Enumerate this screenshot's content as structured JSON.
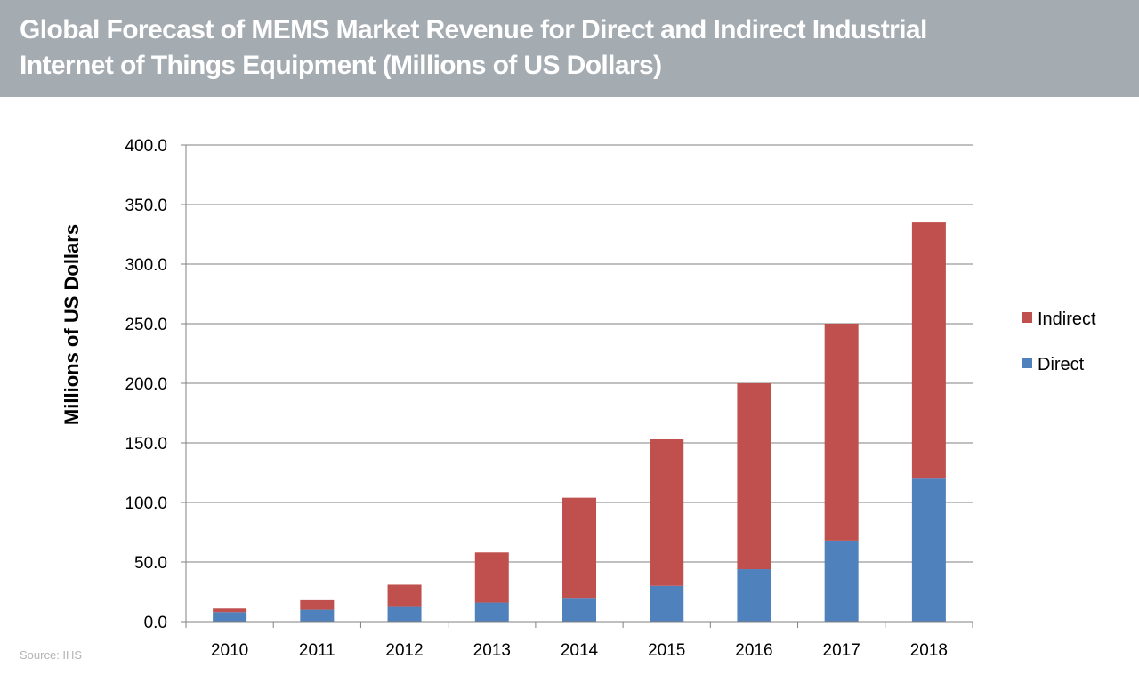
{
  "header": {
    "title_line1": "Global Forecast of MEMS Market Revenue for Direct and Indirect Industrial",
    "title_line2": "Internet of Things Equipment (Millions of US Dollars)"
  },
  "footer": {
    "source": "Source: IHS"
  },
  "colors": {
    "header_bg": "#a4acb2",
    "indirect": "#c0504d",
    "direct": "#4f81bd",
    "grid": "#808080"
  },
  "chart_data": {
    "type": "bar",
    "stacked": true,
    "categories": [
      "2010",
      "2011",
      "2012",
      "2013",
      "2014",
      "2015",
      "2016",
      "2017",
      "2018"
    ],
    "series": [
      {
        "name": "Direct",
        "color": "#4f81bd",
        "values": [
          8,
          10,
          13,
          16,
          20,
          30,
          44,
          68,
          120
        ]
      },
      {
        "name": "Indirect",
        "color": "#c0504d",
        "values": [
          3,
          8,
          18,
          42,
          84,
          123,
          156,
          182,
          215
        ]
      }
    ],
    "ylabel": "Millions of US Dollars",
    "ylim": [
      0,
      400
    ],
    "yticks": [
      "0.0",
      "50.0",
      "100.0",
      "150.0",
      "200.0",
      "250.0",
      "300.0",
      "350.0",
      "400.0"
    ],
    "grid": true,
    "legend": [
      "Indirect",
      "Direct"
    ],
    "legend_position": "right"
  }
}
